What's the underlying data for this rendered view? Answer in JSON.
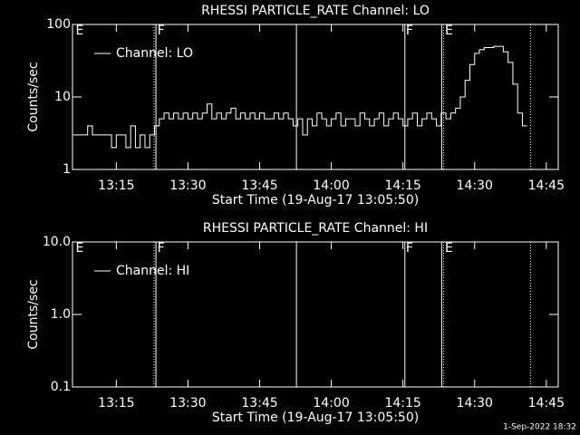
{
  "chart_data": [
    {
      "type": "line",
      "title": "RHESSI PARTICLE_RATE Channel: LO",
      "x_label": "Start Time (19-Aug-17 13:05:50)",
      "y_label": "Counts/sec",
      "log_y": true,
      "xlim": [
        785.83,
        887.5
      ],
      "ylim": [
        1,
        100
      ],
      "xticks": [
        {
          "value": 795,
          "label": "13:15"
        },
        {
          "value": 810,
          "label": "13:30"
        },
        {
          "value": 825,
          "label": "13:45"
        },
        {
          "value": 840,
          "label": "14:00"
        },
        {
          "value": 855,
          "label": "14:15"
        },
        {
          "value": 870,
          "label": "14:30"
        },
        {
          "value": 885,
          "label": "14:45"
        }
      ],
      "yticks": [
        1,
        10,
        100
      ],
      "vlines": [
        {
          "x": 802.9,
          "style": "dotted"
        },
        {
          "x": 803.3,
          "style": "solid"
        },
        {
          "x": 832.7,
          "style": "solid"
        },
        {
          "x": 855.4,
          "style": "solid"
        },
        {
          "x": 863.1,
          "style": "solid"
        },
        {
          "x": 863.5,
          "style": "dotted"
        },
        {
          "x": 881.7,
          "style": "dotted"
        }
      ],
      "flags": [
        {
          "x": 786.5,
          "text": "E"
        },
        {
          "x": 803.6,
          "text": "F"
        },
        {
          "x": 855.6,
          "text": "F"
        },
        {
          "x": 863.8,
          "text": "E"
        }
      ],
      "series": [
        {
          "name": "Channel: LO",
          "color": "#ffffff",
          "x": [
            786,
            787,
            788,
            789,
            790,
            791,
            792,
            793,
            794,
            795,
            796,
            797,
            798,
            799,
            800,
            801,
            802,
            803,
            804,
            805,
            806,
            807,
            808,
            809,
            810,
            811,
            812,
            813,
            814,
            815,
            816,
            817,
            818,
            819,
            820,
            821,
            822,
            823,
            824,
            825,
            826,
            827,
            828,
            829,
            830,
            831,
            832,
            833,
            834,
            835,
            836,
            837,
            838,
            839,
            840,
            841,
            842,
            843,
            844,
            845,
            846,
            847,
            848,
            849,
            850,
            851,
            852,
            853,
            854,
            855,
            856,
            857,
            858,
            859,
            860,
            861,
            862,
            863,
            864,
            865,
            866,
            867,
            868,
            869,
            870,
            871,
            872,
            873,
            874,
            875,
            876,
            877,
            878,
            879,
            880,
            881
          ],
          "values": [
            3,
            3,
            3,
            4,
            3,
            3,
            3,
            3,
            2,
            3,
            3,
            2,
            4,
            2,
            3,
            2,
            3,
            4,
            5,
            6,
            5,
            6,
            5,
            6,
            5,
            6,
            5,
            6,
            8,
            5,
            6,
            5,
            6,
            7,
            5,
            6,
            5,
            6,
            5,
            6,
            5,
            5,
            6,
            5,
            6,
            5,
            4,
            5,
            3,
            5,
            4,
            6,
            5,
            4,
            5,
            6,
            4,
            5,
            5,
            4,
            6,
            5,
            4,
            5,
            6,
            4,
            5,
            6,
            5,
            4,
            5,
            6,
            4,
            5,
            6,
            5,
            4,
            6,
            5,
            6,
            7,
            10,
            17,
            28,
            40,
            45,
            48,
            48,
            50,
            50,
            42,
            30,
            15,
            6,
            4,
            4
          ]
        }
      ]
    },
    {
      "type": "line",
      "title": "RHESSI PARTICLE_RATE Channel: HI",
      "x_label": "Start Time (19-Aug-17 13:05:50)",
      "y_label": "Counts/sec",
      "log_y": true,
      "xlim": [
        785.83,
        887.5
      ],
      "ylim": [
        0.1,
        10
      ],
      "xticks": [
        {
          "value": 795,
          "label": "13:15"
        },
        {
          "value": 810,
          "label": "13:30"
        },
        {
          "value": 825,
          "label": "13:45"
        },
        {
          "value": 840,
          "label": "14:00"
        },
        {
          "value": 855,
          "label": "14:15"
        },
        {
          "value": 870,
          "label": "14:30"
        },
        {
          "value": 885,
          "label": "14:45"
        }
      ],
      "yticks": [
        {
          "value": 0.1,
          "label": "0.1"
        },
        {
          "value": 1,
          "label": "1.0"
        },
        {
          "value": 10,
          "label": "10.0"
        }
      ],
      "vlines": [
        {
          "x": 802.9,
          "style": "dotted"
        },
        {
          "x": 803.3,
          "style": "solid"
        },
        {
          "x": 832.7,
          "style": "solid"
        },
        {
          "x": 855.4,
          "style": "solid"
        },
        {
          "x": 863.1,
          "style": "solid"
        },
        {
          "x": 863.5,
          "style": "dotted"
        },
        {
          "x": 881.7,
          "style": "dotted"
        }
      ],
      "flags": [
        {
          "x": 786.5,
          "text": "E"
        },
        {
          "x": 803.6,
          "text": "F"
        },
        {
          "x": 855.6,
          "text": "F"
        },
        {
          "x": 863.8,
          "text": "E"
        }
      ],
      "series": [
        {
          "name": "Channel: HI",
          "color": "#ffffff",
          "x": [],
          "values": []
        }
      ]
    }
  ],
  "footer": "1-Sep-2022 18:32"
}
